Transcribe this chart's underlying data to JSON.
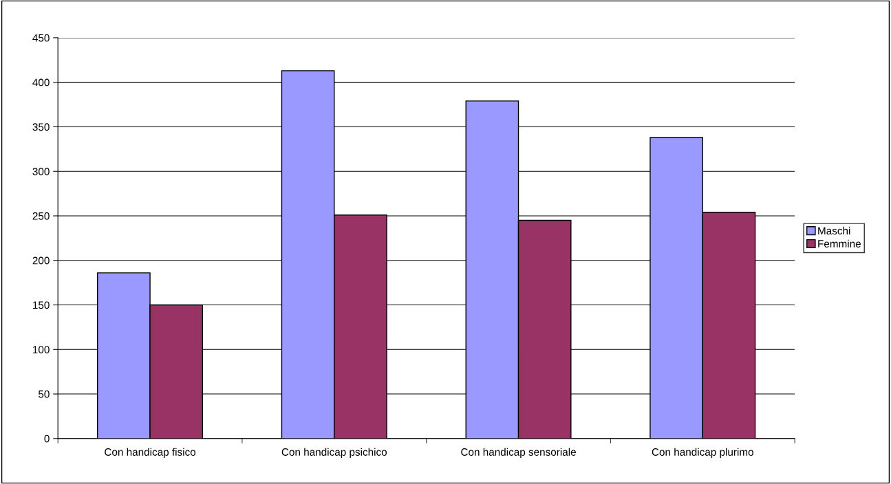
{
  "chart_data": {
    "type": "bar",
    "categories": [
      "Con handicap fisico",
      "Con handicap psichico",
      "Con handicap sensoriale",
      "Con handicap plurimo"
    ],
    "series": [
      {
        "name": "Maschi",
        "color": "#9999ff",
        "values": [
          186,
          413,
          379,
          338
        ]
      },
      {
        "name": "Femmine",
        "color": "#993366",
        "values": [
          150,
          251,
          245,
          254
        ]
      }
    ],
    "ylim": [
      0,
      450
    ],
    "yticks": [
      0,
      50,
      100,
      150,
      200,
      250,
      300,
      350,
      400,
      450
    ],
    "grid": "y",
    "legend": "right"
  }
}
